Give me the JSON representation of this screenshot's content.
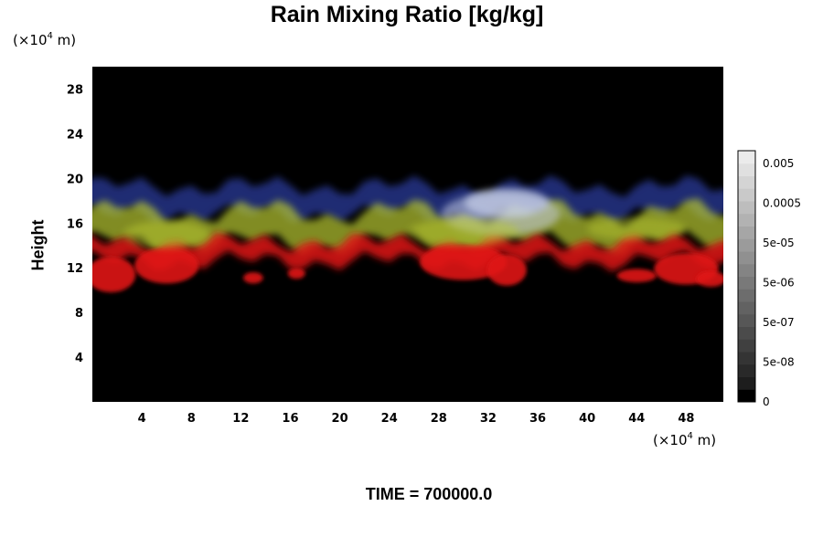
{
  "chart_data": {
    "type": "heatmap",
    "title": "Rain Mixing Ratio [kg/kg]",
    "ylabel": "Height",
    "y_unit": {
      "prefix": "(×10",
      "exp": "4",
      "suffix": " m)"
    },
    "x_unit": {
      "prefix": "(×10",
      "exp": "4",
      "suffix": " m)"
    },
    "x_ticks": [
      "4",
      "8",
      "12",
      "16",
      "20",
      "24",
      "28",
      "32",
      "36",
      "40",
      "44",
      "48"
    ],
    "y_ticks": [
      "4",
      "8",
      "12",
      "16",
      "20",
      "24",
      "28"
    ],
    "xlim": [
      0,
      51
    ],
    "ylim": [
      0,
      30
    ],
    "colorbar": {
      "labels": [
        "0.005",
        "0.0005",
        "5e-05",
        "5e-06",
        "5e-07",
        "5e-08",
        "0"
      ],
      "label_values": [
        0.005,
        0.0005,
        5e-05,
        5e-06,
        5e-07,
        5e-08,
        0
      ],
      "levels": 20,
      "colors": [
        "#000000",
        "#ffffff"
      ]
    },
    "background_color": "#000000",
    "layer_colors": {
      "high": "#2a3a9a",
      "mid": "#b8c832",
      "low": "#e01818",
      "core": "#c8d0e8"
    }
  },
  "footer": "TIME = 700000.0"
}
